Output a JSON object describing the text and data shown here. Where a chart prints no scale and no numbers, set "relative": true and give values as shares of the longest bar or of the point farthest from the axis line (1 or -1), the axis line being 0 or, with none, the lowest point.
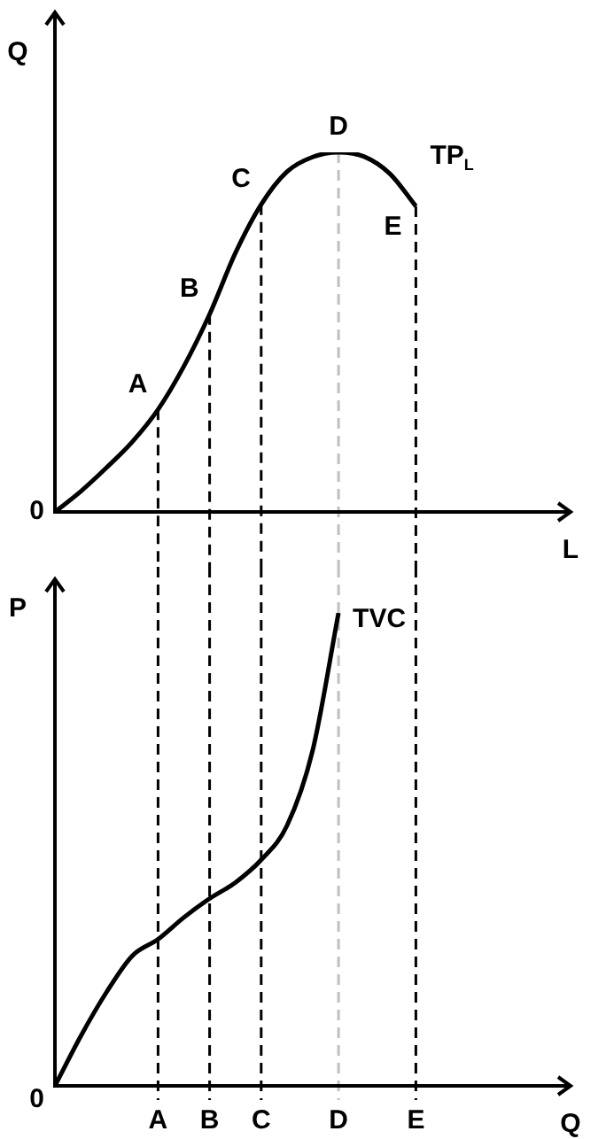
{
  "chart_data": [
    {
      "type": "line",
      "relative": true,
      "ylabel": "Q",
      "xlabel": "L",
      "tick_labels": false,
      "legend": false,
      "marker": "none",
      "line_style": "solid",
      "categories": [
        null,
        null,
        null,
        null,
        "A",
        null,
        "B",
        null,
        "C",
        null,
        null,
        "D",
        null,
        null,
        "E",
        null,
        null,
        null,
        null,
        null,
        null
      ],
      "series": [
        {
          "name": "TP$_{L}$",
          "color": "#000000",
          "values": [
            0,
            0.057,
            0.123,
            0.195,
            0.285,
            0.405,
            0.55,
            0.72,
            0.855,
            0.946,
            0.987,
            1,
            0.988,
            0.94,
            0.85,
            null,
            null,
            null,
            null,
            null,
            null
          ]
        }
      ],
      "annotations": [
        "0",
        "A",
        "B",
        "C",
        "D",
        "E"
      ],
      "ref_lines": [
        {
          "axis": "x",
          "value": "A",
          "color": "#000000",
          "line_style": "dashed"
        },
        {
          "axis": "x",
          "value": "B",
          "color": "#000000",
          "line_style": "dashed"
        },
        {
          "axis": "x",
          "value": "C",
          "color": "#000000",
          "line_style": "dashed"
        },
        {
          "axis": "x",
          "value": "D",
          "color": "#c0c0c0",
          "line_style": "dashed"
        },
        {
          "axis": "x",
          "value": "E",
          "color": "#000000",
          "line_style": "dashed"
        }
      ]
    },
    {
      "type": "line",
      "relative": true,
      "ylabel": "P",
      "xlabel": "Q",
      "tick_labels": "x",
      "legend": false,
      "marker": "none",
      "line_style": "solid",
      "categories": [
        null,
        null,
        null,
        null,
        "A",
        null,
        "B",
        null,
        "C",
        null,
        null,
        "D",
        null,
        null,
        "E",
        null,
        null,
        null,
        null,
        null,
        null
      ],
      "series": [
        {
          "name": "TVC",
          "color": "#000000",
          "values": [
            0,
            0.105,
            0.198,
            0.275,
            0.31,
            0.356,
            0.396,
            0.43,
            0.478,
            0.55,
            0.71,
            1,
            null,
            null,
            null,
            null,
            null,
            null,
            null,
            null,
            null
          ]
        }
      ],
      "annotations": [
        "0"
      ],
      "ref_lines": [
        {
          "axis": "x",
          "value": "A",
          "color": "#000000",
          "line_style": "dashed"
        },
        {
          "axis": "x",
          "value": "B",
          "color": "#000000",
          "line_style": "dashed"
        },
        {
          "axis": "x",
          "value": "C",
          "color": "#000000",
          "line_style": "dashed"
        },
        {
          "axis": "x",
          "value": "D",
          "color": "#c0c0c0",
          "line_style": "dashed"
        },
        {
          "axis": "x",
          "value": "E",
          "color": "#000000",
          "line_style": "dashed"
        }
      ]
    }
  ]
}
